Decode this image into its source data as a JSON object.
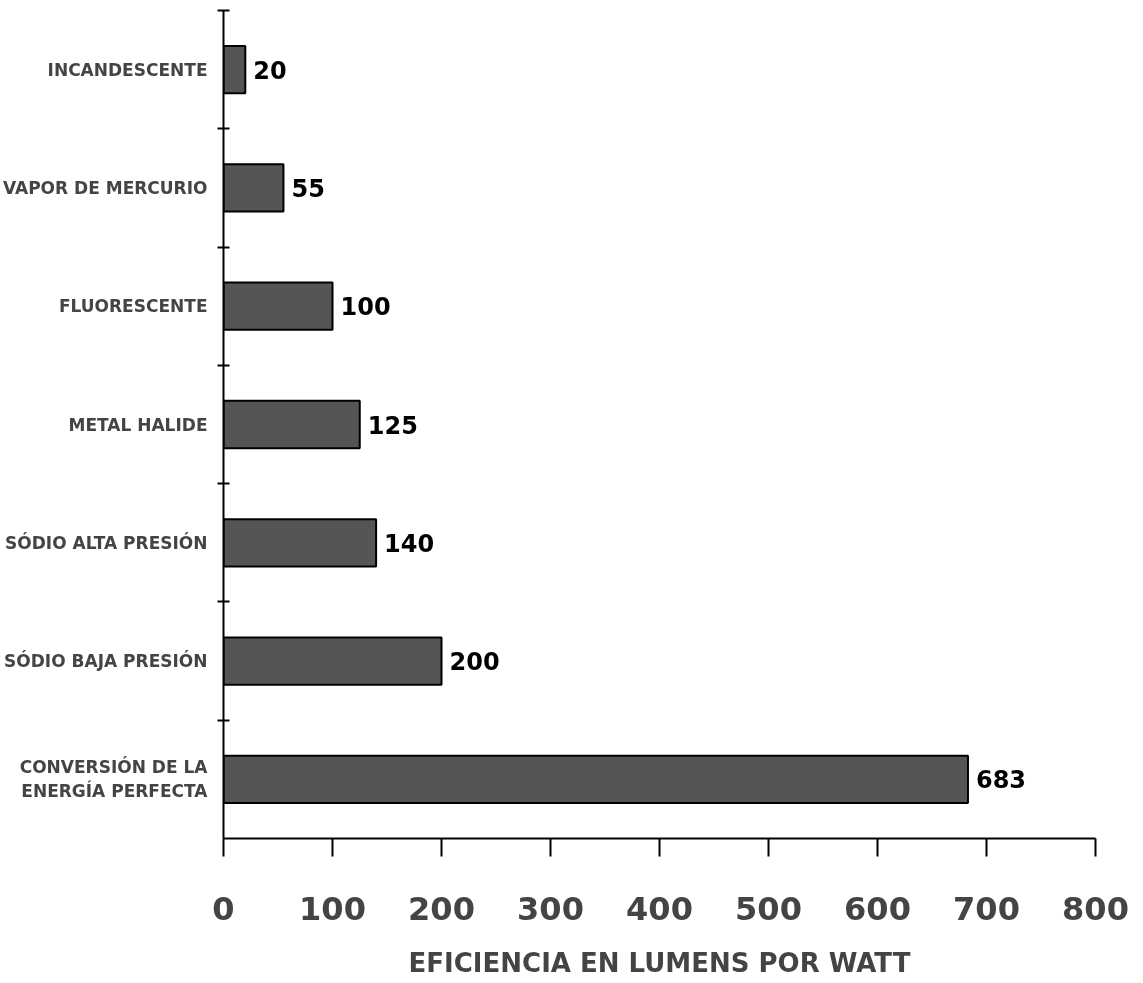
{
  "chart_data": {
    "type": "bar",
    "orientation": "horizontal",
    "xlabel": "EFICIENCIA EN LUMENS POR WATT",
    "categories": [
      "INCANDESCENTE",
      "VAPOR DE MERCURIO",
      "FLUORESCENTE",
      "METAL HALIDE",
      "SÓDIO ALTA PRESIÓN",
      "SÓDIO BAJA PRESIÓN",
      "CONVERSIÓN DE LA\nENERGÍA PERFECTA"
    ],
    "values": [
      20,
      55,
      100,
      125,
      140,
      200,
      683
    ],
    "color": "#555555",
    "xlim": [
      0,
      800
    ],
    "xticks": [
      0,
      100,
      200,
      300,
      400,
      500,
      600,
      700,
      800
    ],
    "data_labels": true,
    "grid": false
  }
}
